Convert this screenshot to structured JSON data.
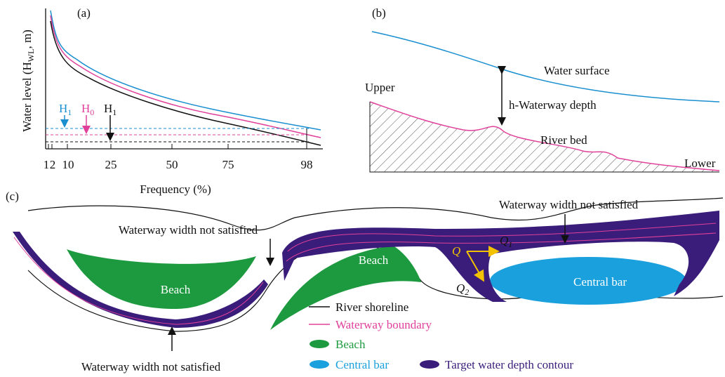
{
  "panel_a": {
    "label": "(a)",
    "y_label": [
      "Water level (H",
      "WL",
      ", m)"
    ],
    "x_label": "Frequency (%)",
    "x_ticks": [
      "1",
      "2",
      "10",
      "25",
      "50",
      "75",
      "98"
    ],
    "markers": [
      {
        "base": "H",
        "sub": "1"
      },
      {
        "base": "H",
        "sub": "0"
      },
      {
        "base": "H",
        "sub": "1"
      }
    ]
  },
  "panel_b": {
    "label": "(b)",
    "water_surface": "Water surface",
    "depth": "h-Waterway depth",
    "upper": "Upper",
    "river_bed": "River bed",
    "lower": "Lower"
  },
  "panel_c": {
    "label": "(c)",
    "width_note_left": "Waterway width not satisfied",
    "width_note_right": "Waterway width not satisfied",
    "width_note_bottom": "Waterway width not satisfied",
    "beach_left": "Beach",
    "beach_middle": "Beach",
    "central_bar": "Central bar",
    "flow": {
      "q": "Q",
      "q1": {
        "base": "Q",
        "sub": "1"
      },
      "q2": {
        "base": "Q",
        "sub": "2"
      }
    },
    "legend": [
      "River shoreline",
      "Waterway boundary",
      "Beach",
      "Central bar",
      "Target water depth contour"
    ]
  }
}
